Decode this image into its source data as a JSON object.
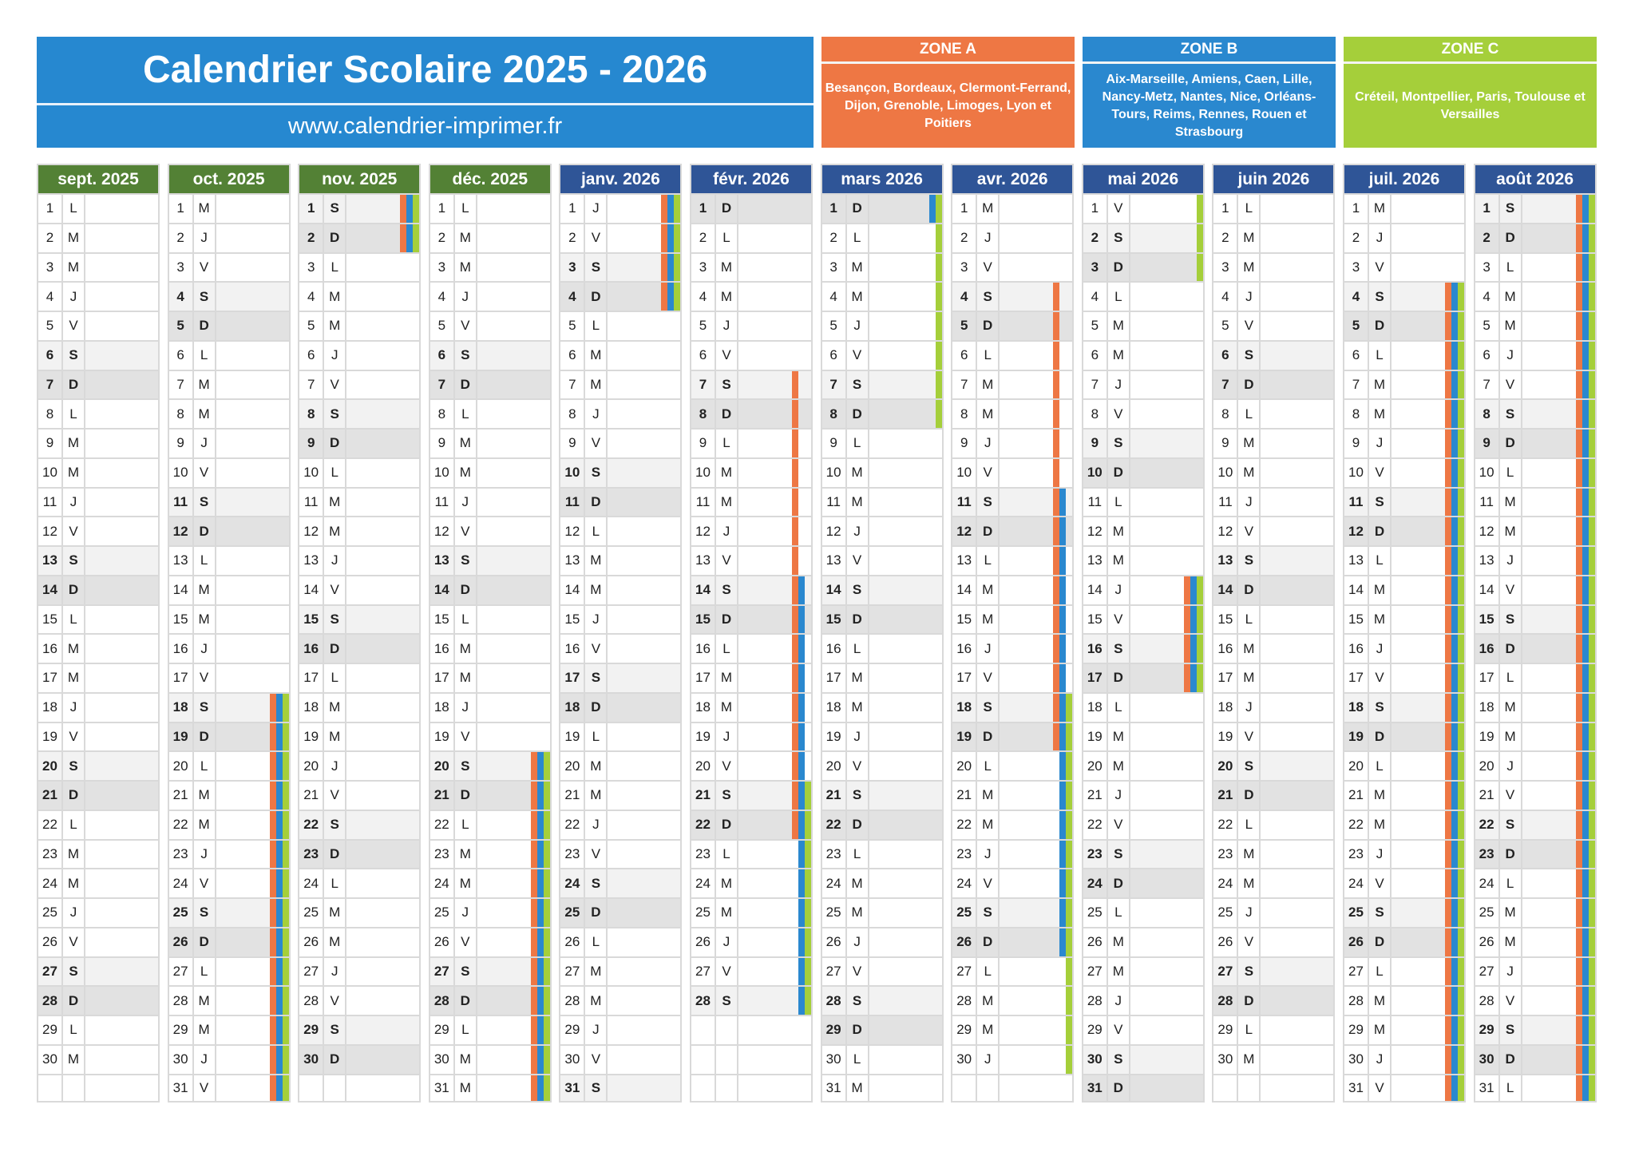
{
  "header": {
    "title": "Calendrier Scolaire 2025 - 2026",
    "url": "www.calendrier-imprimer.fr",
    "color": "#2688d0"
  },
  "zones": [
    {
      "key": "A",
      "title": "ZONE A",
      "cities": "Besançon, Bordeaux, Clermont-Ferrand, Dijon, Grenoble, Limoges, Lyon et Poitiers",
      "color": "#ee7744"
    },
    {
      "key": "B",
      "title": "ZONE B",
      "cities": "Aix-Marseille, Amiens, Caen, Lille, Nancy-Metz, Nantes, Nice, Orléans-Tours, Reims, Rennes, Rouen et Strasbourg",
      "color": "#2a88cf"
    },
    {
      "key": "C",
      "title": "ZONE C",
      "cities": "Créteil, Montpellier, Paris, Toulouse et Versailles",
      "color": "#a5cf3a"
    }
  ],
  "colors": {
    "header_2025": "#538135",
    "header_2026": "#2f5597",
    "saturday": "#f2f2f2",
    "sunday": "#e2e2e2"
  },
  "months": [
    {
      "label": "sept. 2025",
      "weekdays": "LMMJVSDLMMJVSDLMMJVSDLMMJVSDLM",
      "vacations": {}
    },
    {
      "label": "oct. 2025",
      "weekdays": "MJVSDLMMJVSDLMMJVSDLMMJVSDLMMJV",
      "vacations": {
        "A": [
          [
            18,
            31
          ]
        ],
        "B": [
          [
            18,
            31
          ]
        ],
        "C": [
          [
            18,
            31
          ]
        ]
      }
    },
    {
      "label": "nov. 2025",
      "weekdays": "SDLMMJVSDLMMJVSDLMMJVSDLMMJVSD",
      "vacations": {
        "A": [
          [
            1,
            2
          ]
        ],
        "B": [
          [
            1,
            2
          ]
        ],
        "C": [
          [
            1,
            2
          ]
        ]
      }
    },
    {
      "label": "déc. 2025",
      "weekdays": "LMMJVSDLMMJVSDLMMJVSDLMMJVSDLMM",
      "vacations": {
        "A": [
          [
            20,
            31
          ]
        ],
        "B": [
          [
            20,
            31
          ]
        ],
        "C": [
          [
            20,
            31
          ]
        ]
      }
    },
    {
      "label": "janv. 2026",
      "weekdays": "JVSDLMMJVSDLMMJVSDLMMJVSDLMMJVS",
      "vacations": {
        "A": [
          [
            1,
            4
          ]
        ],
        "B": [
          [
            1,
            4
          ]
        ],
        "C": [
          [
            1,
            4
          ]
        ]
      }
    },
    {
      "label": "févr. 2026",
      "weekdays": "DLMMJVSDLMMJVSDLMMJVSDLMMJVS",
      "vacations": {
        "A": [
          [
            7,
            22
          ]
        ],
        "B": [
          [
            14,
            28
          ]
        ],
        "C": [
          [
            21,
            28
          ]
        ]
      }
    },
    {
      "label": "mars 2026",
      "weekdays": "DLMMJVSDLMMJVSDLMMJVSDLMMJVSDLM",
      "vacations": {
        "B": [
          [
            1,
            1
          ]
        ],
        "C": [
          [
            1,
            8
          ]
        ]
      }
    },
    {
      "label": "avr. 2026",
      "weekdays": "MJVSDLMMJVSDLMMJVSDLMMJVSDLMMJ",
      "vacations": {
        "A": [
          [
            4,
            19
          ]
        ],
        "B": [
          [
            11,
            26
          ]
        ],
        "C": [
          [
            18,
            30
          ]
        ]
      }
    },
    {
      "label": "mai 2026",
      "weekdays": "VSDLMMJVSDLMMJVSDLMMJVSDLMMJVSD",
      "vacations": {
        "A": [
          [
            14,
            17
          ]
        ],
        "B": [
          [
            14,
            17
          ]
        ],
        "C": [
          [
            1,
            3
          ],
          [
            14,
            17
          ]
        ]
      }
    },
    {
      "label": "juin 2026",
      "weekdays": "LMMJVSDLMMJVSDLMMJVSDLMMJVSDLM",
      "vacations": {}
    },
    {
      "label": "juil. 2026",
      "weekdays": "MJVSDLMMJVSDLMMJVSDLMMJVSDLMMJV",
      "vacations": {
        "A": [
          [
            4,
            31
          ]
        ],
        "B": [
          [
            4,
            31
          ]
        ],
        "C": [
          [
            4,
            31
          ]
        ]
      }
    },
    {
      "label": "août 2026",
      "weekdays": "SDLMMJVSDLMMJVSDLMMJVSDLMMJVSDL",
      "vacations": {
        "A": [
          [
            1,
            31
          ]
        ],
        "B": [
          [
            1,
            31
          ]
        ],
        "C": [
          [
            1,
            31
          ]
        ]
      }
    }
  ]
}
